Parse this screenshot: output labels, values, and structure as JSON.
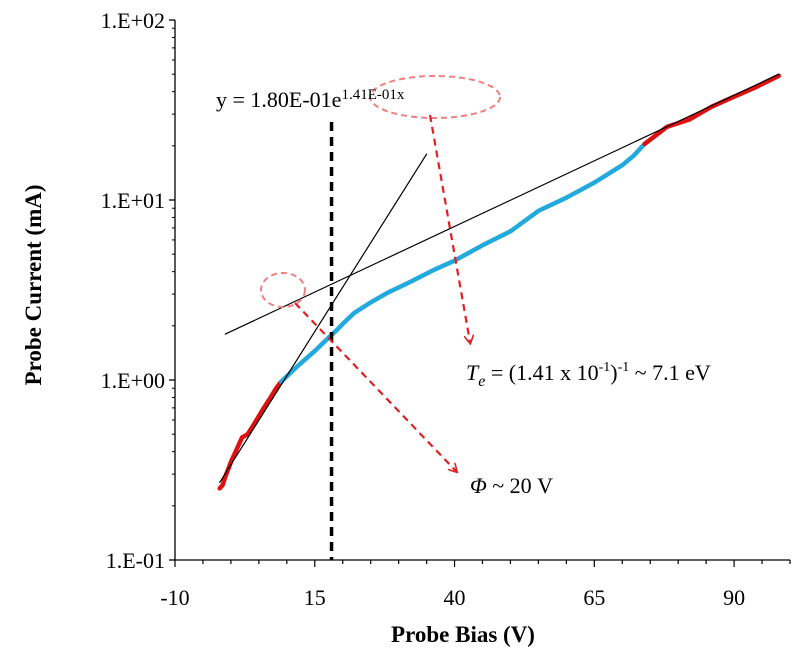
{
  "chart_data": {
    "type": "line",
    "xlabel": "Probe Bias (V)",
    "ylabel": "Probe Current (mA)",
    "x_scale": "linear",
    "y_scale": "log",
    "xlim": [
      -10,
      100
    ],
    "ylim": [
      0.1,
      100
    ],
    "x_ticks": [
      "-10",
      "15",
      "40",
      "65",
      "90"
    ],
    "x_tick_values": [
      -10,
      15,
      40,
      65,
      90
    ],
    "y_ticks": [
      "1.E-01",
      "1.E+00",
      "1.E+01",
      "1.E+02"
    ],
    "y_tick_values": [
      0.1,
      1,
      10,
      100
    ],
    "grid": false,
    "legend": "none",
    "colors": {
      "measured_fit_region": "#dd1111",
      "measured_transition": "#22aadd",
      "fit_lines": "#000000",
      "marker_line": "#000000",
      "annotation": "#e02020",
      "annotation_ellipse": "#f08080"
    },
    "series": [
      {
        "role": "measured-red-low",
        "color": "#dd1111",
        "x": [
          -2,
          -1.5,
          -1,
          0,
          1,
          2,
          3,
          4,
          5,
          6,
          7,
          8,
          9
        ],
        "y": [
          0.25,
          0.26,
          0.29,
          0.35,
          0.41,
          0.48,
          0.5,
          0.56,
          0.63,
          0.71,
          0.79,
          0.89,
          0.98
        ]
      },
      {
        "role": "measured-blue",
        "color": "#22aadd",
        "x": [
          9,
          12,
          15,
          18,
          19,
          20,
          22,
          25,
          28,
          32,
          36,
          40,
          45,
          50,
          55,
          60,
          65,
          70,
          72,
          74
        ],
        "y": [
          0.98,
          1.2,
          1.45,
          1.78,
          1.9,
          2.05,
          2.35,
          2.7,
          3.05,
          3.5,
          4.05,
          4.6,
          5.6,
          6.7,
          8.7,
          10.3,
          12.5,
          15.6,
          17.6,
          20.5
        ]
      },
      {
        "role": "measured-red-high",
        "color": "#dd1111",
        "x": [
          74,
          78,
          82,
          86,
          90,
          94,
          98
        ],
        "y": [
          20.5,
          25.5,
          28,
          33,
          37.5,
          42.5,
          49
        ]
      },
      {
        "role": "fit-line-electron-saturation",
        "color": "#000000",
        "x": [
          -1,
          98
        ],
        "y": [
          1.8,
          50
        ]
      },
      {
        "role": "fit-line-transition",
        "color": "#000000",
        "x": [
          -2,
          35
        ],
        "y": [
          0.27,
          18
        ]
      }
    ],
    "vertical_marker_x": 18,
    "fit_equation": "y = 1.80E-01e",
    "fit_exponent": "1.41E-01x",
    "annotations": {
      "te_symbol": "T",
      "te_subscript": "e",
      "te_expression": " = (1.41 x 10",
      "te_exponent": "-1",
      "te_close": ")",
      "te_exponent2": "-1",
      "te_value": " ~ 7.1 eV",
      "phi_symbol": "Φ",
      "phi_value": " ~ 20 V"
    }
  }
}
